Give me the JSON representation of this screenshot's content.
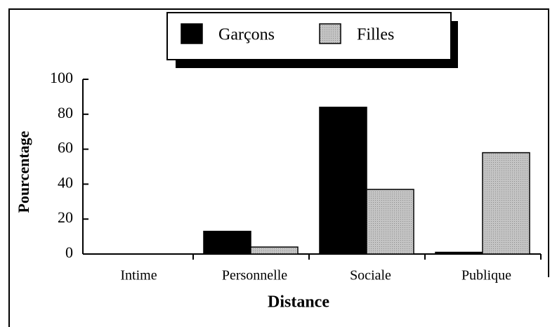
{
  "chart_data": {
    "type": "bar",
    "categories": [
      "Intime",
      "Personnelle",
      "Sociale",
      "Publique"
    ],
    "series": [
      {
        "name": "Garçons",
        "color": "#000000",
        "values": [
          0,
          13,
          84,
          1
        ]
      },
      {
        "name": "Filles",
        "color": "#c4c4c4",
        "values": [
          0,
          4,
          37,
          58
        ]
      }
    ],
    "ylim": [
      0,
      100
    ],
    "yticks": [
      0,
      20,
      40,
      60,
      80,
      100
    ],
    "xlabel": "Distance",
    "ylabel": "Pourcentage",
    "legend": "top"
  }
}
